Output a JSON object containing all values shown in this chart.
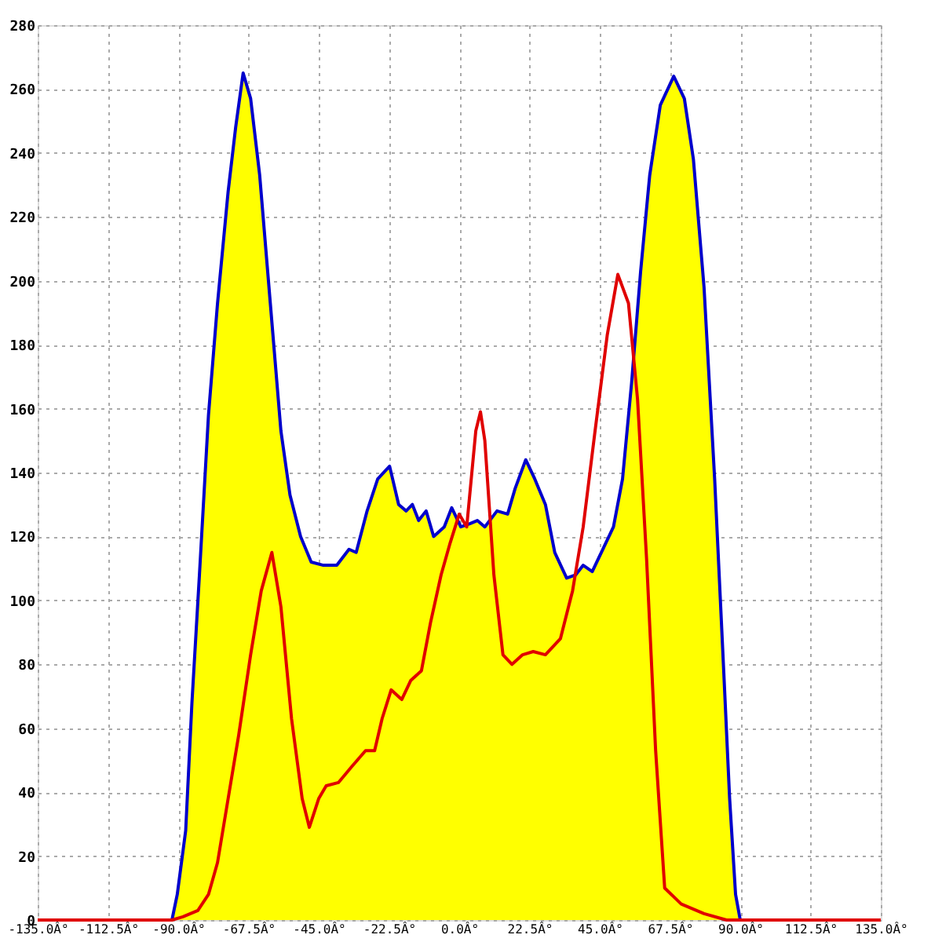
{
  "chart_data": {
    "type": "area",
    "xlim": [
      -135,
      135
    ],
    "xticks": [
      {
        "value": -135,
        "label": "-135.0Â°"
      },
      {
        "value": -112.5,
        "label": "-112.5Â°"
      },
      {
        "value": -90,
        "label": "-90.0Â°"
      },
      {
        "value": -67.5,
        "label": "-67.5Â°"
      },
      {
        "value": -45,
        "label": "-45.0Â°"
      },
      {
        "value": -22.5,
        "label": "-22.5Â°"
      },
      {
        "value": 0,
        "label": "0.0Â°"
      },
      {
        "value": 22.5,
        "label": "22.5Â°"
      },
      {
        "value": 45,
        "label": "45.0Â°"
      },
      {
        "value": 67.5,
        "label": "67.5Â°"
      },
      {
        "value": 90,
        "label": "90.0Â°"
      },
      {
        "value": 112.5,
        "label": "112.5Â°"
      },
      {
        "value": 135,
        "label": "135.0Â°"
      }
    ],
    "ylim": [
      0,
      280
    ],
    "yticks": [
      0,
      20,
      40,
      60,
      80,
      100,
      120,
      140,
      160,
      180,
      200,
      220,
      240,
      260,
      280
    ],
    "grid": true,
    "series": [
      {
        "color": "#ffff00",
        "x": [
          -92,
          -90.3,
          -87.6,
          -85.6,
          -83.2,
          -80.3,
          -77.4,
          -74,
          -71.6,
          -69.2,
          -66.8,
          -63.9,
          -60.5,
          -57.1,
          -54.2,
          -50.8,
          -47.4,
          -43.5,
          -39.2,
          -35.3,
          -33,
          -29.5,
          -26.1,
          -22.3,
          -19.4,
          -17,
          -15,
          -13,
          -10.6,
          -8.2,
          -4.8,
          -2.4,
          0.5,
          3.4,
          5.8,
          8.2,
          12.1,
          15.5,
          17.9,
          21.3,
          24.2,
          27.6,
          30.6,
          34.4,
          37.3,
          39.7,
          42.6,
          45.5,
          49.4,
          52.3,
          55.2,
          58.1,
          61,
          64.4,
          68.7,
          72.1,
          75,
          78.4,
          81.8,
          84.7,
          86.6,
          88.5,
          90
        ],
        "values": [
          0,
          8,
          28,
          68,
          108,
          158,
          193,
          228,
          248,
          265,
          257,
          233,
          193,
          153,
          133,
          120,
          112,
          111,
          111,
          116,
          115,
          128,
          138,
          142,
          130,
          128,
          130,
          125,
          128,
          120,
          123,
          129,
          123,
          124,
          125,
          123,
          128,
          127,
          135,
          144,
          138,
          130,
          115,
          107,
          108,
          111,
          109,
          115,
          123,
          138,
          168,
          203,
          233,
          255,
          264,
          257,
          238,
          198,
          138,
          78,
          38,
          8,
          0
        ]
      },
      {
        "type": "line",
        "color": "#e00000",
        "x": [
          -135,
          -92,
          -88.5,
          -83.7,
          -80.3,
          -77.4,
          -74,
          -70.6,
          -66.8,
          -63.4,
          -60,
          -57.1,
          -53.7,
          -50.3,
          -48,
          -45,
          -42.6,
          -38.7,
          -34.4,
          -30,
          -27.1,
          -24.7,
          -21.8,
          -18.4,
          -15.5,
          -12.1,
          -9.2,
          -5.8,
          -2.9,
          0,
          2.4,
          5.3,
          6.8,
          8.2,
          11.1,
          14,
          16.9,
          20.3,
          23.7,
          27.6,
          32.4,
          36.3,
          39.7,
          43.5,
          47.4,
          50.8,
          54.2,
          57.1,
          60,
          62.9,
          65.8,
          71.1,
          78.4,
          85.6,
          135
        ],
        "values": [
          0,
          0,
          1,
          3,
          8,
          18,
          38,
          58,
          83,
          103,
          115,
          98,
          63,
          38,
          29,
          38,
          42,
          43,
          48,
          53,
          53,
          63,
          72,
          69,
          75,
          78,
          93,
          108,
          118,
          127,
          123,
          153,
          159,
          150,
          108,
          83,
          80,
          83,
          84,
          83,
          88,
          103,
          123,
          153,
          183,
          202,
          193,
          163,
          113,
          53,
          10,
          5,
          2,
          0,
          0
        ]
      }
    ]
  }
}
